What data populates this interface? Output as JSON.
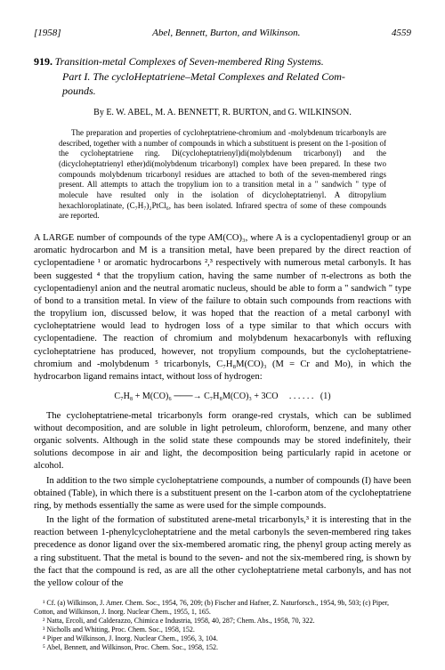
{
  "header": {
    "year": "[1958]",
    "authors_short": "Abel, Bennett, Burton, and Wilkinson.",
    "page_num": "4559"
  },
  "title": {
    "number": "919.",
    "line1": "Transition-metal Complexes of Seven-membered Ring Systems.",
    "line2": "Part I. The cycloHeptatriene–Metal Complexes and Related Com-",
    "line3": "pounds."
  },
  "authors": "By E. W. ABEL, M. A. BENNETT, R. BURTON, and G. WILKINSON.",
  "abstract": {
    "p1": "The preparation and properties of cycloheptatriene-chromium and -molybdenum tricarbonyls are described, together with a number of compounds in which a substituent is present on the 1-position of the cycloheptatriene ring. Di(cycloheptatrienyl)di(molybdenum tricarbonyl) and the (dicycloheptatrienyl ether)di(molybdenum tricarbonyl) complex have been prepared. In these two compounds molybdenum tricarbonyl residues are attached to both of the seven-membered rings present. All attempts to attach the tropylium ion to a transition metal in a \" sandwich \" type of molecule have resulted only in the isolation of dicycloheptatrienyl. A ditropylium hexachloroplatinate, (C₇H₇)₂PtCl₆, has been isolated. Infrared spectra of some of these compounds are reported."
  },
  "body": {
    "p1": "A LARGE number of compounds of the type AM(CO)₃, where A is a cyclopentadienyl group or an aromatic hydrocarbon and M is a transition metal, have been prepared by the direct reaction of cyclopentadiene ¹ or aromatic hydrocarbons ²,³ respectively with numerous metal carbonyls. It has been suggested ⁴ that the tropylium cation, having the same number of π-electrons as both the cyclopentadienyl anion and the neutral aromatic nucleus, should be able to form a \" sandwich \" type of bond to a transition metal. In view of the failure to obtain such compounds from reactions with the tropylium ion, discussed below, it was hoped that the reaction of a metal carbonyl with cycloheptatriene would lead to hydrogen loss of a type similar to that which occurs with cyclopentadiene. The reaction of chromium and molybdenum hexacarbonyls with refluxing cycloheptatriene has produced, however, not tropylium compounds, but the cycloheptatriene-chromium and -molybdenum ⁵ tricarbonyls, C₇H₈M(CO)₃ (M = Cr and Mo), in which the hydrocarbon ligand remains intact, without loss of hydrogen:",
    "eq": "C₇H₈ + M(CO)₆ ───→ C₇H₈M(CO)₃ + 3CO",
    "eq_dots": ". . . . . .",
    "eq_num": "(1)",
    "p2": "The cycloheptatriene-metal tricarbonyls form orange-red crystals, which can be sublimed without decomposition, and are soluble in light petroleum, chloroform, benzene, and many other organic solvents. Although in the solid state these compounds may be stored indefinitely, their solutions decompose in air and light, the decomposition being particularly rapid in acetone or alcohol.",
    "p3": "In addition to the two simple cycloheptatriene compounds, a number of compounds (I) have been obtained (Table), in which there is a substituent present on the 1-carbon atom of the cycloheptatriene ring, by methods essentially the same as were used for the simple compounds.",
    "p4": "In the light of the formation of substituted arene-metal tricarbonyls,³ it is interesting that in the reaction between 1-phenylcycloheptatriene and the metal carbonyls the seven-membered ring takes precedence as donor ligand over the six-membered aromatic ring, the phenyl group acting merely as a ring substituent. That the metal is bound to the seven- and not the six-membered ring, is shown by the fact that the compound is red, as are all the other cycloheptatriene metal carbonyls, and has not the yellow colour of the"
  },
  "refs": {
    "r1": "¹ Cf. (a) Wilkinson, J. Amer. Chem. Soc., 1954, 76, 209; (b) Fischer and Hafner, Z. Naturforsch., 1954, 9b, 503; (c) Piper, Cotton, and Wilkinson, J. Inorg. Nuclear Chem., 1955, 1, 165.",
    "r2": "² Natta, Ercoli, and Calderazzo, Chimica e Industria, 1958, 40, 287; Chem. Abs., 1958, 70, 322.",
    "r3": "³ Nicholls and Whiting, Proc. Chem. Soc., 1958, 152.",
    "r4": "⁴ Piper and Wilkinson, J. Inorg. Nuclear Chem., 1956, 3, 104.",
    "r5": "⁵ Abel, Bennett, and Wilkinson, Proc. Chem. Soc., 1958, 152."
  }
}
